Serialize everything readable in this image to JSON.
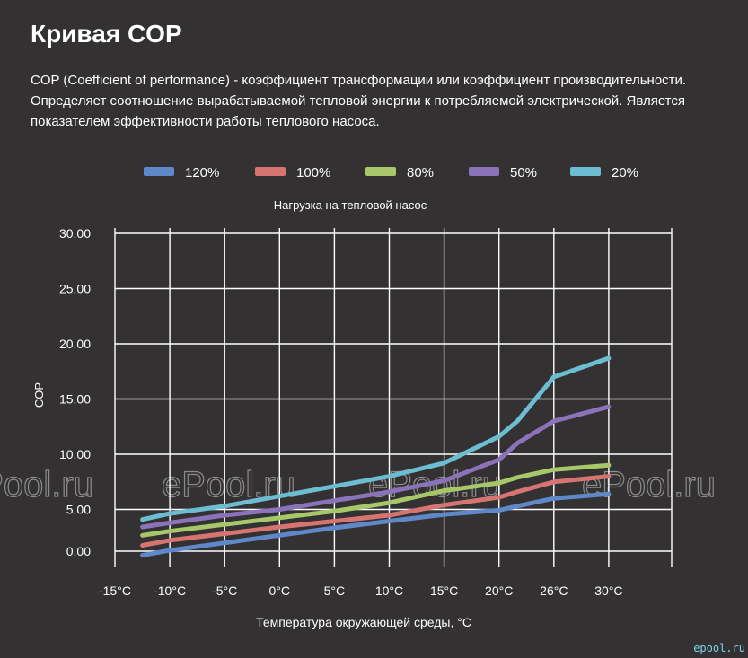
{
  "page": {
    "title": "Кривая COP",
    "description": "COP (Coefficient of performance) - коэффициент трансформации или коэффициент производительности. Определяет соотношение вырабатываемой тепловой энергии к потребляемой электрической. Является показателем эффективности работы теплового насоса.",
    "site_mark": "epool.ru"
  },
  "watermark": "ePool.ru",
  "chart_data": {
    "type": "line",
    "title": "Нагрузка на тепловой насос",
    "xlabel": "Температура окружающей среды, °C",
    "ylabel": "COP",
    "categories": [
      "-15°C",
      "-10°C",
      "-5°C",
      "0°C",
      "5°C",
      "10°C",
      "15°C",
      "20°C",
      "26°C",
      "30°C"
    ],
    "yticks": [
      "30.00",
      "25.00",
      "20.00",
      "15.00",
      "10.00",
      "5.00",
      "0.00"
    ],
    "ylim": [
      0,
      30
    ],
    "grid": true,
    "legend_position": "top",
    "series": [
      {
        "name": "120%",
        "color": "#5f88c9",
        "x": [
          -12.5,
          -10,
          -5,
          0,
          5,
          10,
          15,
          20,
          22,
          26,
          30
        ],
        "y": [
          -0.5,
          0.1,
          1.0,
          1.9,
          2.8,
          3.6,
          4.4,
          4.9,
          5.3,
          6.0,
          6.4
        ]
      },
      {
        "name": "100%",
        "color": "#d57470",
        "x": [
          -12.5,
          -10,
          -5,
          0,
          5,
          10,
          15,
          20,
          22,
          26,
          30
        ],
        "y": [
          0.7,
          1.3,
          2.1,
          2.9,
          3.6,
          4.3,
          5.4,
          6.1,
          6.6,
          7.5,
          8.0
        ]
      },
      {
        "name": "80%",
        "color": "#a7c769",
        "x": [
          -12.5,
          -10,
          -5,
          0,
          5,
          10,
          15,
          20,
          22,
          26,
          30
        ],
        "y": [
          1.9,
          2.4,
          3.2,
          4.0,
          4.8,
          5.6,
          6.7,
          7.4,
          7.9,
          8.6,
          9.0
        ]
      },
      {
        "name": "50%",
        "color": "#8b73ba",
        "x": [
          -12.5,
          -10,
          -5,
          0,
          5,
          10,
          15,
          20,
          22,
          26,
          30
        ],
        "y": [
          2.9,
          3.4,
          4.3,
          5.0,
          5.8,
          6.6,
          7.6,
          9.5,
          11.0,
          13.0,
          14.3
        ]
      },
      {
        "name": "20%",
        "color": "#6cbdd2",
        "x": [
          -12.5,
          -10,
          -5,
          0,
          5,
          10,
          15,
          20,
          22,
          26,
          30
        ],
        "y": [
          3.8,
          4.5,
          5.3,
          6.2,
          7.1,
          8.0,
          9.2,
          11.6,
          13.0,
          17.0,
          18.7
        ]
      }
    ]
  }
}
